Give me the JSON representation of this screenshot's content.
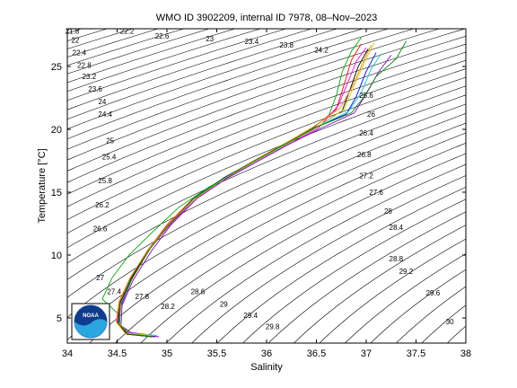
{
  "chart_data": {
    "type": "line",
    "title": "WMO ID 3902209, internal ID 7978, 08–Nov–2023",
    "xlabel": "Salinity",
    "ylabel": "Temperature [°C]",
    "xlim": [
      34,
      38
    ],
    "ylim": [
      3,
      28
    ],
    "xticks": [
      "34",
      "34.5",
      "35",
      "35.5",
      "36",
      "36.5",
      "37",
      "37.5",
      "38"
    ],
    "yticks": [
      "5",
      "10",
      "15",
      "20",
      "25"
    ],
    "grid": false,
    "contour_labels": [
      {
        "text": "21.8",
        "s": 34.05,
        "t": 27.6
      },
      {
        "text": "22",
        "s": 34.08,
        "t": 26.9
      },
      {
        "text": "22.2",
        "s": 34.6,
        "t": 27.6
      },
      {
        "text": "22.4",
        "s": 34.12,
        "t": 25.9
      },
      {
        "text": "22.6",
        "s": 34.95,
        "t": 27.2
      },
      {
        "text": "22.8",
        "s": 34.17,
        "t": 24.9
      },
      {
        "text": "23",
        "s": 35.43,
        "t": 27.0
      },
      {
        "text": "23.2",
        "s": 34.22,
        "t": 24.0
      },
      {
        "text": "23.4",
        "s": 35.85,
        "t": 26.8
      },
      {
        "text": "23.6",
        "s": 34.28,
        "t": 23.0
      },
      {
        "text": "23.8",
        "s": 36.2,
        "t": 26.5
      },
      {
        "text": "24",
        "s": 34.35,
        "t": 22.0
      },
      {
        "text": "24.2",
        "s": 36.55,
        "t": 26.1
      },
      {
        "text": "24.4",
        "s": 34.38,
        "t": 21.0
      },
      {
        "text": "25",
        "s": 34.43,
        "t": 18.9
      },
      {
        "text": "25.4",
        "s": 34.42,
        "t": 17.6
      },
      {
        "text": "25.6",
        "s": 37.0,
        "t": 22.5
      },
      {
        "text": "25.8",
        "s": 34.38,
        "t": 15.7
      },
      {
        "text": "26",
        "s": 37.05,
        "t": 21.0
      },
      {
        "text": "26.2",
        "s": 34.35,
        "t": 13.8
      },
      {
        "text": "26.4",
        "s": 37.0,
        "t": 19.5
      },
      {
        "text": "26.6",
        "s": 34.33,
        "t": 11.9
      },
      {
        "text": "26.8",
        "s": 36.98,
        "t": 17.8
      },
      {
        "text": "27",
        "s": 34.33,
        "t": 8.0
      },
      {
        "text": "27.2",
        "s": 37.0,
        "t": 16.1
      },
      {
        "text": "27.4",
        "s": 34.47,
        "t": 6.9
      },
      {
        "text": "27.6",
        "s": 37.1,
        "t": 14.8
      },
      {
        "text": "27.8",
        "s": 34.75,
        "t": 6.5
      },
      {
        "text": "28",
        "s": 37.22,
        "t": 13.3
      },
      {
        "text": "28.2",
        "s": 35.01,
        "t": 5.7
      },
      {
        "text": "28.4",
        "s": 37.3,
        "t": 12.0
      },
      {
        "text": "28.6",
        "s": 35.31,
        "t": 6.9
      },
      {
        "text": "28.8",
        "s": 37.3,
        "t": 9.5
      },
      {
        "text": "29",
        "s": 35.57,
        "t": 5.9
      },
      {
        "text": "29.2",
        "s": 37.4,
        "t": 8.5
      },
      {
        "text": "29.4",
        "s": 35.84,
        "t": 5.0
      },
      {
        "text": "29.6",
        "s": 37.67,
        "t": 6.8
      },
      {
        "text": "29.8",
        "s": 36.06,
        "t": 4.1
      },
      {
        "text": "30",
        "s": 37.84,
        "t": 4.5
      }
    ],
    "profiles": [
      {
        "color": "#ff0000",
        "points": [
          [
            34.82,
            3.6
          ],
          [
            34.6,
            3.8
          ],
          [
            34.5,
            4.6
          ],
          [
            34.52,
            6.2
          ],
          [
            34.62,
            8.0
          ],
          [
            34.8,
            10.3
          ],
          [
            35.0,
            12.4
          ],
          [
            35.25,
            14.4
          ],
          [
            35.55,
            16.0
          ],
          [
            35.85,
            17.4
          ],
          [
            36.15,
            18.7
          ],
          [
            36.45,
            20.0
          ],
          [
            36.7,
            21.6
          ],
          [
            36.78,
            23.6
          ],
          [
            36.85,
            25.5
          ],
          [
            36.95,
            26.8
          ]
        ]
      },
      {
        "color": "#0000ff",
        "points": [
          [
            34.88,
            3.5
          ],
          [
            34.62,
            3.7
          ],
          [
            34.52,
            4.5
          ],
          [
            34.54,
            6.0
          ],
          [
            34.65,
            8.1
          ],
          [
            34.83,
            10.5
          ],
          [
            35.03,
            12.5
          ],
          [
            35.28,
            14.6
          ],
          [
            35.58,
            16.2
          ],
          [
            35.9,
            17.6
          ],
          [
            36.2,
            18.9
          ],
          [
            36.5,
            20.2
          ],
          [
            36.8,
            21.2
          ],
          [
            36.9,
            22.6
          ],
          [
            37.0,
            24.6
          ],
          [
            37.1,
            26.1
          ]
        ]
      },
      {
        "color": "#00aa00",
        "points": [
          [
            34.5,
            5.4
          ],
          [
            34.42,
            6.0
          ],
          [
            34.35,
            6.5
          ],
          [
            34.45,
            8.2
          ],
          [
            34.62,
            10.0
          ],
          [
            34.85,
            11.8
          ],
          [
            35.12,
            13.8
          ],
          [
            35.42,
            15.4
          ],
          [
            35.75,
            16.9
          ],
          [
            36.05,
            18.3
          ],
          [
            36.38,
            19.7
          ],
          [
            36.62,
            21.0
          ],
          [
            36.7,
            22.7
          ],
          [
            36.76,
            24.6
          ],
          [
            36.85,
            26.2
          ],
          [
            36.95,
            27.3
          ]
        ]
      },
      {
        "color": "#ff00ff",
        "points": [
          [
            34.78,
            3.7
          ],
          [
            34.6,
            3.9
          ],
          [
            34.5,
            4.8
          ],
          [
            34.55,
            6.5
          ],
          [
            34.66,
            8.3
          ],
          [
            34.84,
            10.6
          ],
          [
            35.05,
            12.6
          ],
          [
            35.3,
            14.5
          ],
          [
            35.6,
            16.1
          ],
          [
            35.92,
            17.5
          ],
          [
            36.22,
            18.8
          ],
          [
            36.52,
            20.1
          ],
          [
            36.72,
            21.9
          ],
          [
            36.82,
            23.8
          ],
          [
            36.9,
            25.4
          ],
          [
            37.0,
            26.5
          ]
        ]
      },
      {
        "color": "#00cccc",
        "points": [
          [
            34.9,
            3.6
          ],
          [
            34.64,
            3.8
          ],
          [
            34.53,
            4.4
          ],
          [
            34.53,
            6.1
          ],
          [
            34.63,
            8.0
          ],
          [
            34.82,
            10.4
          ],
          [
            35.02,
            12.4
          ],
          [
            35.27,
            14.5
          ],
          [
            35.57,
            16.1
          ],
          [
            35.88,
            17.5
          ],
          [
            36.18,
            18.8
          ],
          [
            36.48,
            20.1
          ],
          [
            36.82,
            21.4
          ],
          [
            36.95,
            22.9
          ],
          [
            37.05,
            24.8
          ],
          [
            37.15,
            26.0
          ]
        ]
      },
      {
        "color": "#000000",
        "points": [
          [
            34.85,
            3.5
          ],
          [
            34.6,
            3.7
          ],
          [
            34.51,
            4.5
          ],
          [
            34.53,
            6.2
          ],
          [
            34.64,
            8.1
          ],
          [
            34.81,
            10.4
          ],
          [
            35.01,
            12.3
          ],
          [
            35.26,
            14.4
          ],
          [
            35.56,
            16.0
          ],
          [
            35.87,
            17.4
          ],
          [
            36.17,
            18.7
          ],
          [
            36.47,
            20.0
          ],
          [
            36.76,
            21.5
          ],
          [
            36.84,
            23.2
          ],
          [
            36.92,
            25.0
          ],
          [
            37.02,
            26.4
          ]
        ]
      },
      {
        "color": "#ff8800",
        "points": [
          [
            34.8,
            3.6
          ],
          [
            34.58,
            3.8
          ],
          [
            34.49,
            4.7
          ],
          [
            34.52,
            6.3
          ],
          [
            34.63,
            8.2
          ],
          [
            34.82,
            10.5
          ],
          [
            35.02,
            12.5
          ],
          [
            35.27,
            14.5
          ],
          [
            35.57,
            16.1
          ],
          [
            35.87,
            17.5
          ],
          [
            36.17,
            18.8
          ],
          [
            36.47,
            20.2
          ],
          [
            36.74,
            21.7
          ],
          [
            36.86,
            23.4
          ],
          [
            36.96,
            25.2
          ],
          [
            37.05,
            26.7
          ]
        ]
      },
      {
        "color": "#8800cc",
        "points": [
          [
            34.92,
            3.5
          ],
          [
            34.66,
            3.7
          ],
          [
            34.54,
            4.4
          ],
          [
            34.55,
            6.0
          ],
          [
            34.66,
            8.0
          ],
          [
            34.85,
            10.4
          ],
          [
            35.04,
            12.4
          ],
          [
            35.3,
            14.5
          ],
          [
            35.6,
            16.1
          ],
          [
            35.92,
            17.5
          ],
          [
            36.22,
            18.8
          ],
          [
            36.55,
            20.1
          ],
          [
            36.88,
            21.3
          ],
          [
            37.0,
            22.8
          ],
          [
            37.12,
            24.5
          ],
          [
            37.25,
            25.9
          ]
        ]
      },
      {
        "color": "#cccc00",
        "points": [
          [
            34.84,
            3.6
          ],
          [
            34.61,
            3.8
          ],
          [
            34.52,
            4.6
          ],
          [
            34.54,
            6.2
          ],
          [
            34.65,
            8.1
          ],
          [
            34.83,
            10.5
          ],
          [
            35.03,
            12.5
          ],
          [
            35.28,
            14.5
          ],
          [
            35.58,
            16.1
          ],
          [
            35.89,
            17.5
          ],
          [
            36.19,
            18.8
          ],
          [
            36.49,
            20.1
          ],
          [
            36.78,
            21.6
          ],
          [
            36.88,
            23.5
          ],
          [
            36.98,
            25.3
          ],
          [
            37.08,
            26.9
          ]
        ]
      },
      {
        "color": "#008800",
        "points": [
          [
            34.86,
            3.5
          ],
          [
            34.62,
            3.7
          ],
          [
            34.52,
            4.5
          ],
          [
            34.53,
            6.1
          ],
          [
            34.64,
            8.0
          ],
          [
            34.82,
            10.4
          ],
          [
            35.02,
            12.4
          ],
          [
            35.27,
            14.5
          ],
          [
            35.57,
            16.1
          ],
          [
            35.88,
            17.5
          ],
          [
            36.18,
            18.8
          ],
          [
            36.48,
            20.1
          ],
          [
            36.85,
            21.3
          ],
          [
            36.98,
            22.6
          ],
          [
            37.1,
            24.2
          ],
          [
            37.3,
            25.6
          ],
          [
            37.4,
            27.0
          ]
        ]
      }
    ]
  },
  "logo": {
    "text": "NOAA"
  }
}
